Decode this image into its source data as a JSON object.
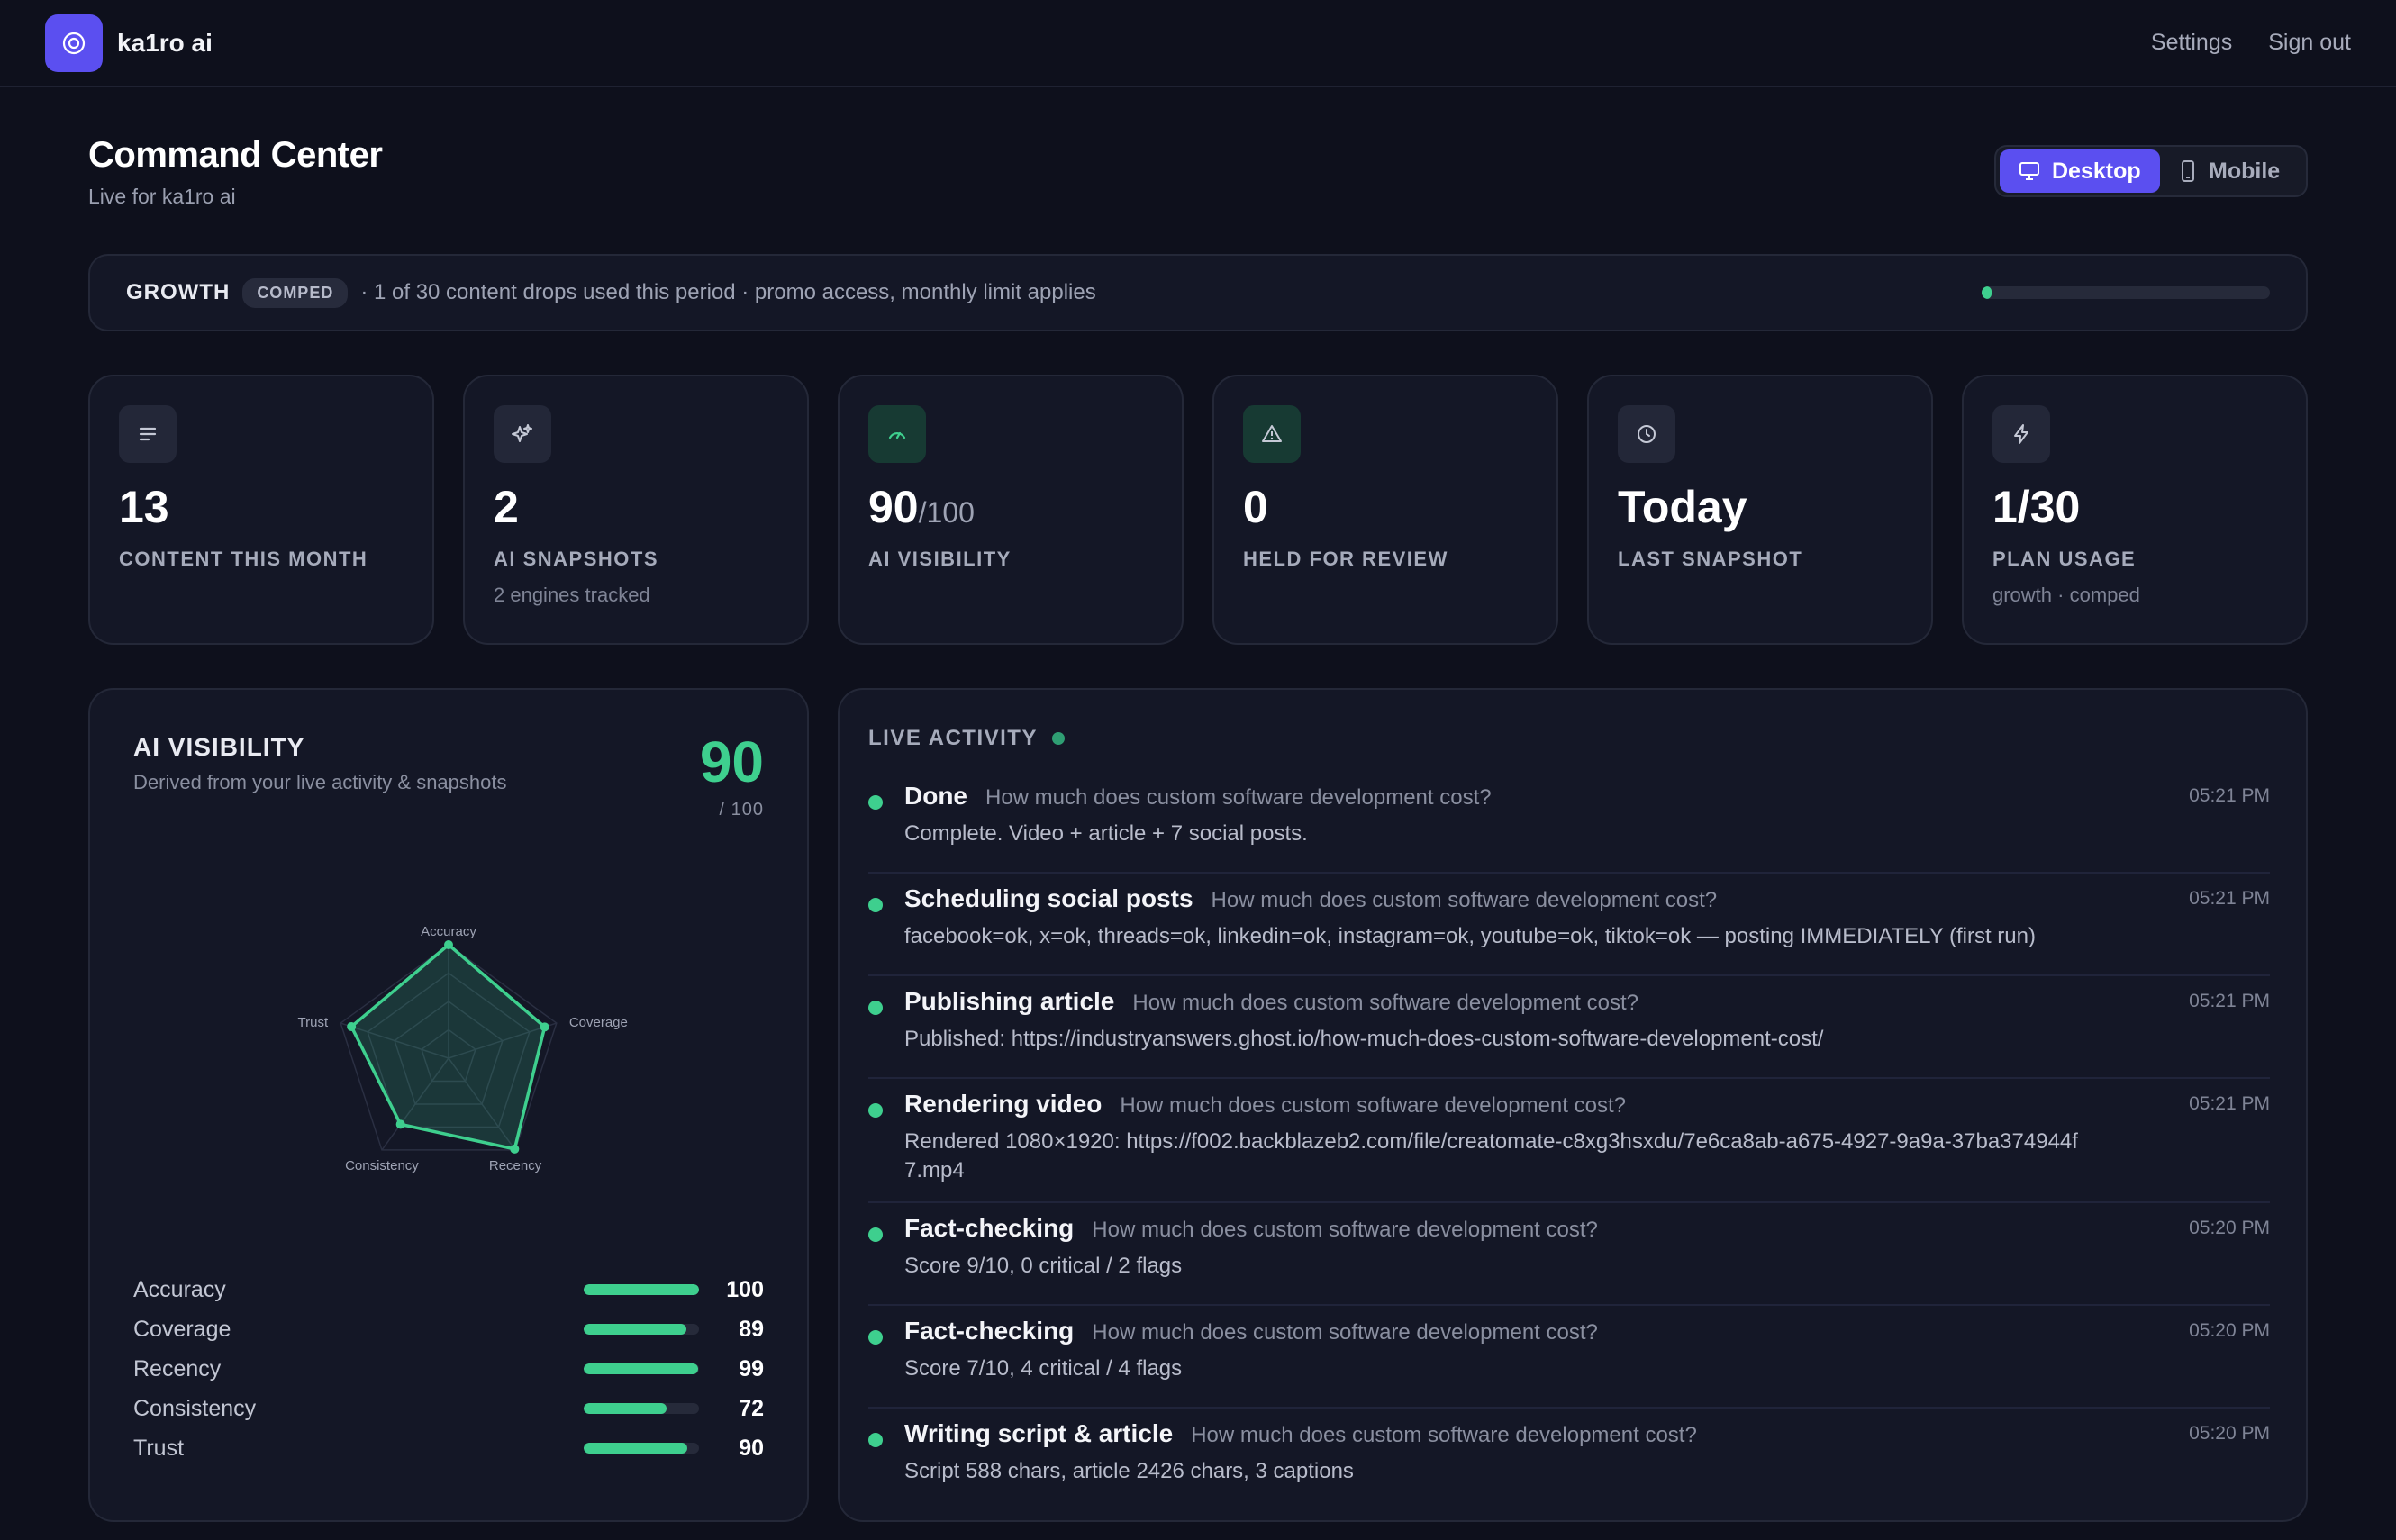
{
  "app": {
    "brand": "ka1ro ai",
    "nav": {
      "settings": "Settings",
      "sign_out": "Sign out"
    }
  },
  "header": {
    "title": "Command Center",
    "subtitle": "Live for ka1ro ai",
    "device_toggle": {
      "desktop": "Desktop",
      "mobile": "Mobile",
      "selected": "Desktop"
    }
  },
  "plan": {
    "name": "GROWTH",
    "badge": "COMPED",
    "text": "· 1 of 30 content drops used this period · promo access, monthly limit applies",
    "usage_fraction": 0.033
  },
  "stats": [
    {
      "icon": "lines-icon",
      "value": "13",
      "suffix": "",
      "label": "CONTENT THIS MONTH",
      "sub": ""
    },
    {
      "icon": "sparkle-icon",
      "value": "2",
      "suffix": "",
      "label": "AI SNAPSHOTS",
      "sub": "2 engines tracked"
    },
    {
      "icon": "gauge-icon",
      "value": "90",
      "suffix": "/100",
      "label": "AI VISIBILITY",
      "sub": ""
    },
    {
      "icon": "warning-icon",
      "value": "0",
      "suffix": "",
      "label": "HELD FOR REVIEW",
      "sub": ""
    },
    {
      "icon": "clock-icon",
      "value": "Today",
      "suffix": "",
      "label": "LAST SNAPSHOT",
      "sub": ""
    },
    {
      "icon": "bolt-icon",
      "value": "1/30",
      "suffix": "",
      "label": "PLAN USAGE",
      "sub": "growth · comped"
    }
  ],
  "visibility": {
    "title": "AI VISIBILITY",
    "subtitle": "Derived from your live activity & snapshots",
    "score": "90",
    "score_denominator": "/ 100",
    "accent": "#3ecf8e",
    "metrics": [
      {
        "name": "Accuracy",
        "value": 100
      },
      {
        "name": "Coverage",
        "value": 89
      },
      {
        "name": "Recency",
        "value": 99
      },
      {
        "name": "Consistency",
        "value": 72
      },
      {
        "name": "Trust",
        "value": 90
      }
    ]
  },
  "activity": {
    "title": "LIVE ACTIVITY",
    "items": [
      {
        "step": "Done",
        "question": "How much does custom software development cost?",
        "detail": "Complete. Video + article + 7 social posts.",
        "time": "05:21 PM"
      },
      {
        "step": "Scheduling social posts",
        "question": "How much does custom software development cost?",
        "detail": "facebook=ok, x=ok, threads=ok, linkedin=ok, instagram=ok, youtube=ok, tiktok=ok — posting IMMEDIATELY (first run)",
        "time": "05:21 PM"
      },
      {
        "step": "Publishing article",
        "question": "How much does custom software development cost?",
        "detail": "Published: https://industryanswers.ghost.io/how-much-does-custom-software-development-cost/",
        "time": "05:21 PM"
      },
      {
        "step": "Rendering video",
        "question": "How much does custom software development cost?",
        "detail": "Rendered 1080×1920: https://f002.backblazeb2.com/file/creatomate-c8xg3hsxdu/7e6ca8ab-a675-4927-9a9a-37ba374944f7.mp4",
        "time": "05:21 PM"
      },
      {
        "step": "Fact-checking",
        "question": "How much does custom software development cost?",
        "detail": "Score 9/10, 0 critical / 2 flags",
        "time": "05:20 PM"
      },
      {
        "step": "Fact-checking",
        "question": "How much does custom software development cost?",
        "detail": "Score 7/10, 4 critical / 4 flags",
        "time": "05:20 PM"
      },
      {
        "step": "Writing script & article",
        "question": "How much does custom software development cost?",
        "detail": "Script 588 chars, article 2426 chars, 3 captions",
        "time": "05:20 PM"
      }
    ]
  }
}
